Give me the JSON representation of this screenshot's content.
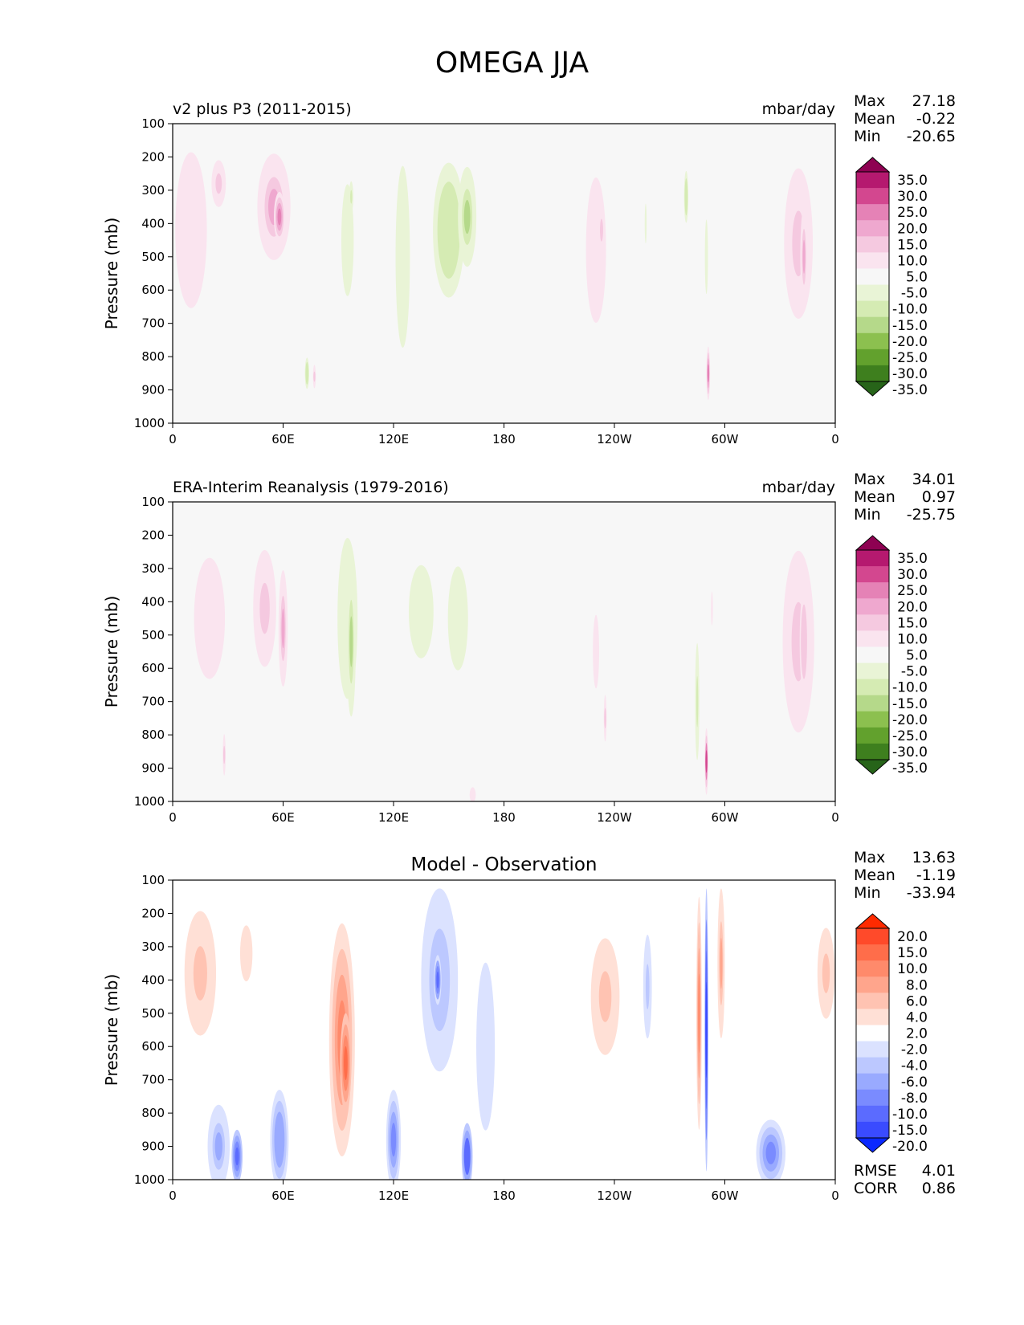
{
  "figure": {
    "title": "OMEGA JJA"
  },
  "chart_data": [
    {
      "type": "heatmap",
      "title_left": "v2 plus P3 (2011-2015)",
      "title_center": "",
      "units": "mbar/day",
      "ylabel": "Pressure (mb)",
      "xticks": [
        "0",
        "60E",
        "120E",
        "180",
        "120W",
        "60W",
        "0"
      ],
      "yticks": [
        "100",
        "200",
        "300",
        "400",
        "500",
        "600",
        "700",
        "800",
        "900",
        "1000"
      ],
      "xlim": [
        0,
        360
      ],
      "ylim": [
        1000,
        100
      ],
      "colormap": "diverging pink-green",
      "stats": [
        {
          "label": "Max",
          "value": "27.18"
        },
        {
          "label": "Mean",
          "value": "-0.22"
        },
        {
          "label": "Min",
          "value": "-20.65"
        }
      ],
      "colorbar": {
        "labels": [
          "35.0",
          "30.0",
          "25.0",
          "20.0",
          "15.0",
          "10.0",
          "5.0",
          "-5.0",
          "-10.0",
          "-15.0",
          "-20.0",
          "-25.0",
          "-30.0",
          "-35.0"
        ],
        "colors": [
          "#8e0152",
          "#b5196f",
          "#d3478f",
          "#e582b6",
          "#efa8cf",
          "#f5c9e0",
          "#fae4ef",
          "#f7f7f7",
          "#e9f4d6",
          "#d5ebb3",
          "#b5d98a",
          "#8cc04f",
          "#62a12d",
          "#3e7f1e",
          "#276419"
        ]
      },
      "features": [
        {
          "lon": 10,
          "p": 420,
          "w": 22,
          "h": 600,
          "v": 9
        },
        {
          "lon": 25,
          "p": 280,
          "w": 10,
          "h": 180,
          "v": 12
        },
        {
          "lon": 55,
          "p": 350,
          "w": 18,
          "h": 320,
          "v": 17
        },
        {
          "lon": 58,
          "p": 380,
          "w": 6,
          "h": 150,
          "v": 21
        },
        {
          "lon": 73,
          "p": 850,
          "w": 3,
          "h": 120,
          "v": -14
        },
        {
          "lon": 77,
          "p": 860,
          "w": 2,
          "h": 90,
          "v": 11
        },
        {
          "lon": 95,
          "p": 450,
          "w": 12,
          "h": 600,
          "v": -7
        },
        {
          "lon": 97,
          "p": 320,
          "w": 3,
          "h": 120,
          "v": -12
        },
        {
          "lon": 125,
          "p": 500,
          "w": 10,
          "h": 700,
          "v": -9
        },
        {
          "lon": 150,
          "p": 420,
          "w": 22,
          "h": 520,
          "v": -14
        },
        {
          "lon": 160,
          "p": 380,
          "w": 10,
          "h": 300,
          "v": -17
        },
        {
          "lon": 230,
          "p": 480,
          "w": 14,
          "h": 560,
          "v": 9
        },
        {
          "lon": 233,
          "p": 420,
          "w": 5,
          "h": 200,
          "v": 12
        },
        {
          "lon": 257,
          "p": 400,
          "w": 3,
          "h": 350,
          "v": -6
        },
        {
          "lon": 279,
          "p": 320,
          "w": 3,
          "h": 200,
          "v": -13
        },
        {
          "lon": 291,
          "p": 850,
          "w": 2,
          "h": 160,
          "v": 24
        },
        {
          "lon": 290,
          "p": 500,
          "w": 3,
          "h": 400,
          "v": -8
        },
        {
          "lon": 340,
          "p": 460,
          "w": 20,
          "h": 580,
          "v": 11
        },
        {
          "lon": 343,
          "p": 500,
          "w": 4,
          "h": 300,
          "v": 17
        }
      ]
    },
    {
      "type": "heatmap",
      "title_left": "ERA-Interim Reanalysis (1979-2016)",
      "title_center": "",
      "units": "mbar/day",
      "ylabel": "Pressure (mb)",
      "xticks": [
        "0",
        "60E",
        "120E",
        "180",
        "120W",
        "60W",
        "0"
      ],
      "yticks": [
        "100",
        "200",
        "300",
        "400",
        "500",
        "600",
        "700",
        "800",
        "900",
        "1000"
      ],
      "xlim": [
        0,
        360
      ],
      "ylim": [
        1000,
        100
      ],
      "colormap": "diverging pink-green",
      "stats": [
        {
          "label": "Max",
          "value": "34.01"
        },
        {
          "label": "Mean",
          "value": "0.97"
        },
        {
          "label": "Min",
          "value": "-25.75"
        }
      ],
      "colorbar": {
        "labels": [
          "35.0",
          "30.0",
          "25.0",
          "20.0",
          "15.0",
          "10.0",
          "5.0",
          "-5.0",
          "-10.0",
          "-15.0",
          "-20.0",
          "-25.0",
          "-30.0",
          "-35.0"
        ],
        "colors": [
          "#8e0152",
          "#b5196f",
          "#d3478f",
          "#e582b6",
          "#efa8cf",
          "#f5c9e0",
          "#fae4ef",
          "#f7f7f7",
          "#e9f4d6",
          "#d5ebb3",
          "#b5d98a",
          "#8cc04f",
          "#62a12d",
          "#3e7f1e",
          "#276419"
        ]
      },
      "features": [
        {
          "lon": 20,
          "p": 450,
          "w": 30,
          "h": 650,
          "v": 7
        },
        {
          "lon": 50,
          "p": 420,
          "w": 16,
          "h": 450,
          "v": 11
        },
        {
          "lon": 60,
          "p": 480,
          "w": 5,
          "h": 350,
          "v": 16
        },
        {
          "lon": 28,
          "p": 860,
          "w": 2,
          "h": 160,
          "v": 11
        },
        {
          "lon": 95,
          "p": 450,
          "w": 14,
          "h": 620,
          "v": -9
        },
        {
          "lon": 97,
          "p": 520,
          "w": 5,
          "h": 450,
          "v": -16
        },
        {
          "lon": 135,
          "p": 430,
          "w": 24,
          "h": 500,
          "v": -7
        },
        {
          "lon": 155,
          "p": 450,
          "w": 14,
          "h": 400,
          "v": -9
        },
        {
          "lon": 163,
          "p": 980,
          "w": 6,
          "h": 80,
          "v": 8
        },
        {
          "lon": 230,
          "p": 550,
          "w": 10,
          "h": 650,
          "v": 6
        },
        {
          "lon": 235,
          "p": 750,
          "w": 2,
          "h": 180,
          "v": 12
        },
        {
          "lon": 285,
          "p": 700,
          "w": 3,
          "h": 450,
          "v": -12
        },
        {
          "lon": 290,
          "p": 880,
          "w": 2,
          "h": 200,
          "v": 26
        },
        {
          "lon": 293,
          "p": 420,
          "w": 3,
          "h": 300,
          "v": 5
        },
        {
          "lon": 340,
          "p": 520,
          "w": 22,
          "h": 700,
          "v": 10
        },
        {
          "lon": 343,
          "p": 520,
          "w": 6,
          "h": 400,
          "v": 13
        }
      ]
    },
    {
      "type": "heatmap",
      "title_left": "",
      "title_center": "Model - Observation",
      "units": "",
      "ylabel": "Pressure (mb)",
      "xticks": [
        "0",
        "60E",
        "120E",
        "180",
        "120W",
        "60W",
        "0"
      ],
      "yticks": [
        "100",
        "200",
        "300",
        "400",
        "500",
        "600",
        "700",
        "800",
        "900",
        "1000"
      ],
      "xlim": [
        0,
        360
      ],
      "ylim": [
        1000,
        100
      ],
      "colormap": "diverging red-blue",
      "stats": [
        {
          "label": "Max",
          "value": "13.63"
        },
        {
          "label": "Mean",
          "value": "-1.19"
        },
        {
          "label": "Min",
          "value": "-33.94"
        }
      ],
      "extra_stats": [
        {
          "label": "RMSE",
          "value": "4.01"
        },
        {
          "label": "CORR",
          "value": "0.86"
        }
      ],
      "colorbar": {
        "labels": [
          "20.0",
          "15.0",
          "10.0",
          "8.0",
          "6.0",
          "4.0",
          "2.0",
          "-2.0",
          "-4.0",
          "-6.0",
          "-8.0",
          "-10.0",
          "-15.0",
          "-20.0"
        ],
        "colors": [
          "#ff2a00",
          "#ff4a2a",
          "#ff6d4a",
          "#ff8a6b",
          "#ffa58c",
          "#ffc3b2",
          "#ffe0d6",
          "#ffffff",
          "#dbe2ff",
          "#bcc8ff",
          "#99aaff",
          "#7a8bff",
          "#5b6bff",
          "#3a4bff",
          "#0a28ff"
        ]
      },
      "features": [
        {
          "lon": 15,
          "p": 380,
          "w": 22,
          "h": 480,
          "v": 4
        },
        {
          "lon": 40,
          "p": 320,
          "w": 12,
          "h": 300,
          "v": 3
        },
        {
          "lon": 25,
          "p": 900,
          "w": 12,
          "h": 250,
          "v": -7
        },
        {
          "lon": 35,
          "p": 930,
          "w": 6,
          "h": 160,
          "v": -12
        },
        {
          "lon": 58,
          "p": 880,
          "w": 10,
          "h": 300,
          "v": -8
        },
        {
          "lon": 92,
          "p": 580,
          "w": 14,
          "h": 700,
          "v": 8
        },
        {
          "lon": 94,
          "p": 650,
          "w": 6,
          "h": 300,
          "v": 12
        },
        {
          "lon": 120,
          "p": 880,
          "w": 8,
          "h": 300,
          "v": -9
        },
        {
          "lon": 145,
          "p": 400,
          "w": 20,
          "h": 550,
          "v": -6
        },
        {
          "lon": 144,
          "p": 400,
          "w": 4,
          "h": 150,
          "v": -11
        },
        {
          "lon": 160,
          "p": 930,
          "w": 6,
          "h": 200,
          "v": -14
        },
        {
          "lon": 170,
          "p": 600,
          "w": 18,
          "h": 900,
          "v": -3
        },
        {
          "lon": 235,
          "p": 450,
          "w": 20,
          "h": 450,
          "v": 4
        },
        {
          "lon": 258,
          "p": 420,
          "w": 6,
          "h": 400,
          "v": -5
        },
        {
          "lon": 286,
          "p": 500,
          "w": 3,
          "h": 700,
          "v": 9
        },
        {
          "lon": 290,
          "p": 550,
          "w": 2,
          "h": 850,
          "v": -16
        },
        {
          "lon": 298,
          "p": 350,
          "w": 4,
          "h": 450,
          "v": 7
        },
        {
          "lon": 325,
          "p": 920,
          "w": 16,
          "h": 200,
          "v": -9
        },
        {
          "lon": 355,
          "p": 380,
          "w": 12,
          "h": 350,
          "v": 4
        }
      ]
    }
  ]
}
